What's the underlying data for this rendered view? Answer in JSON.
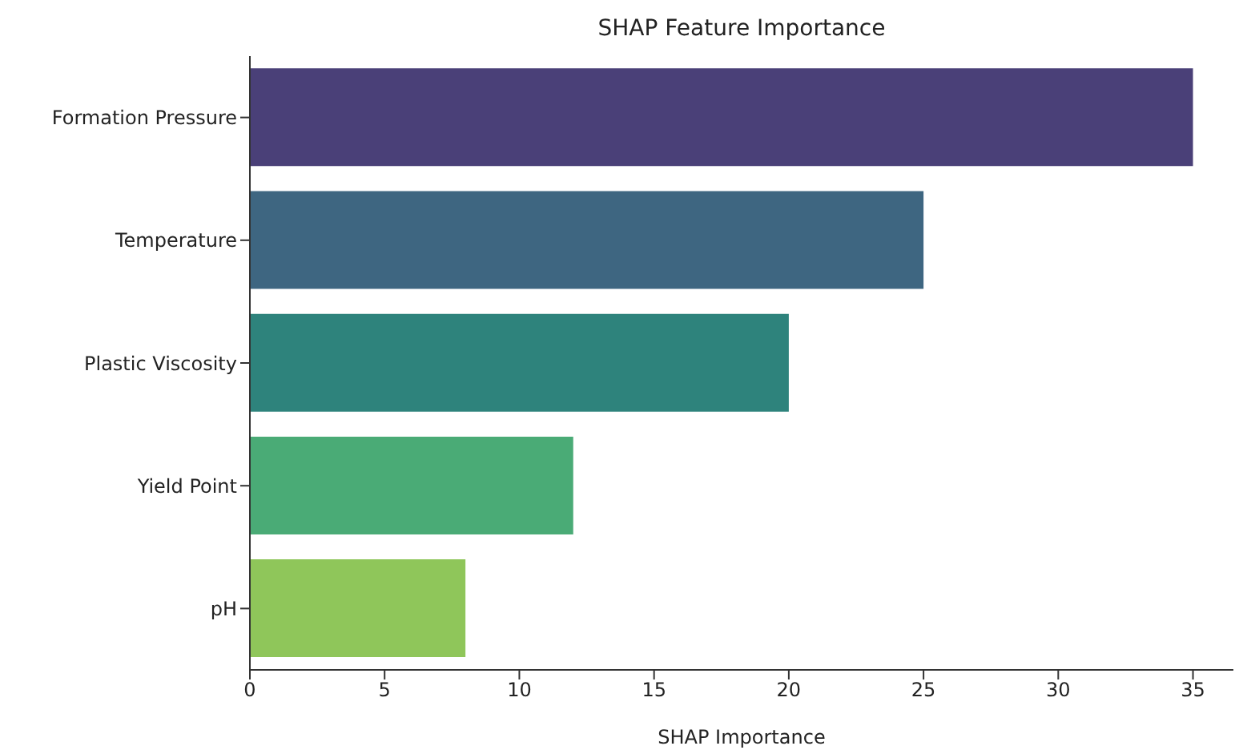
{
  "chart_data": {
    "type": "bar",
    "orientation": "horizontal",
    "title": "SHAP Feature Importance",
    "xlabel": "SHAP Importance",
    "categories": [
      "Formation Pressure",
      "Temperature",
      "Plastic Viscosity",
      "Yield Point",
      "pH"
    ],
    "values": [
      35,
      25,
      20,
      12,
      8
    ],
    "colors": [
      "#4a4078",
      "#3e6681",
      "#2e837c",
      "#4aab76",
      "#8fc65a"
    ],
    "xlim": [
      0,
      36.5
    ],
    "xticks": [
      0,
      5,
      10,
      15,
      20,
      25,
      30,
      35
    ],
    "grid": false
  }
}
